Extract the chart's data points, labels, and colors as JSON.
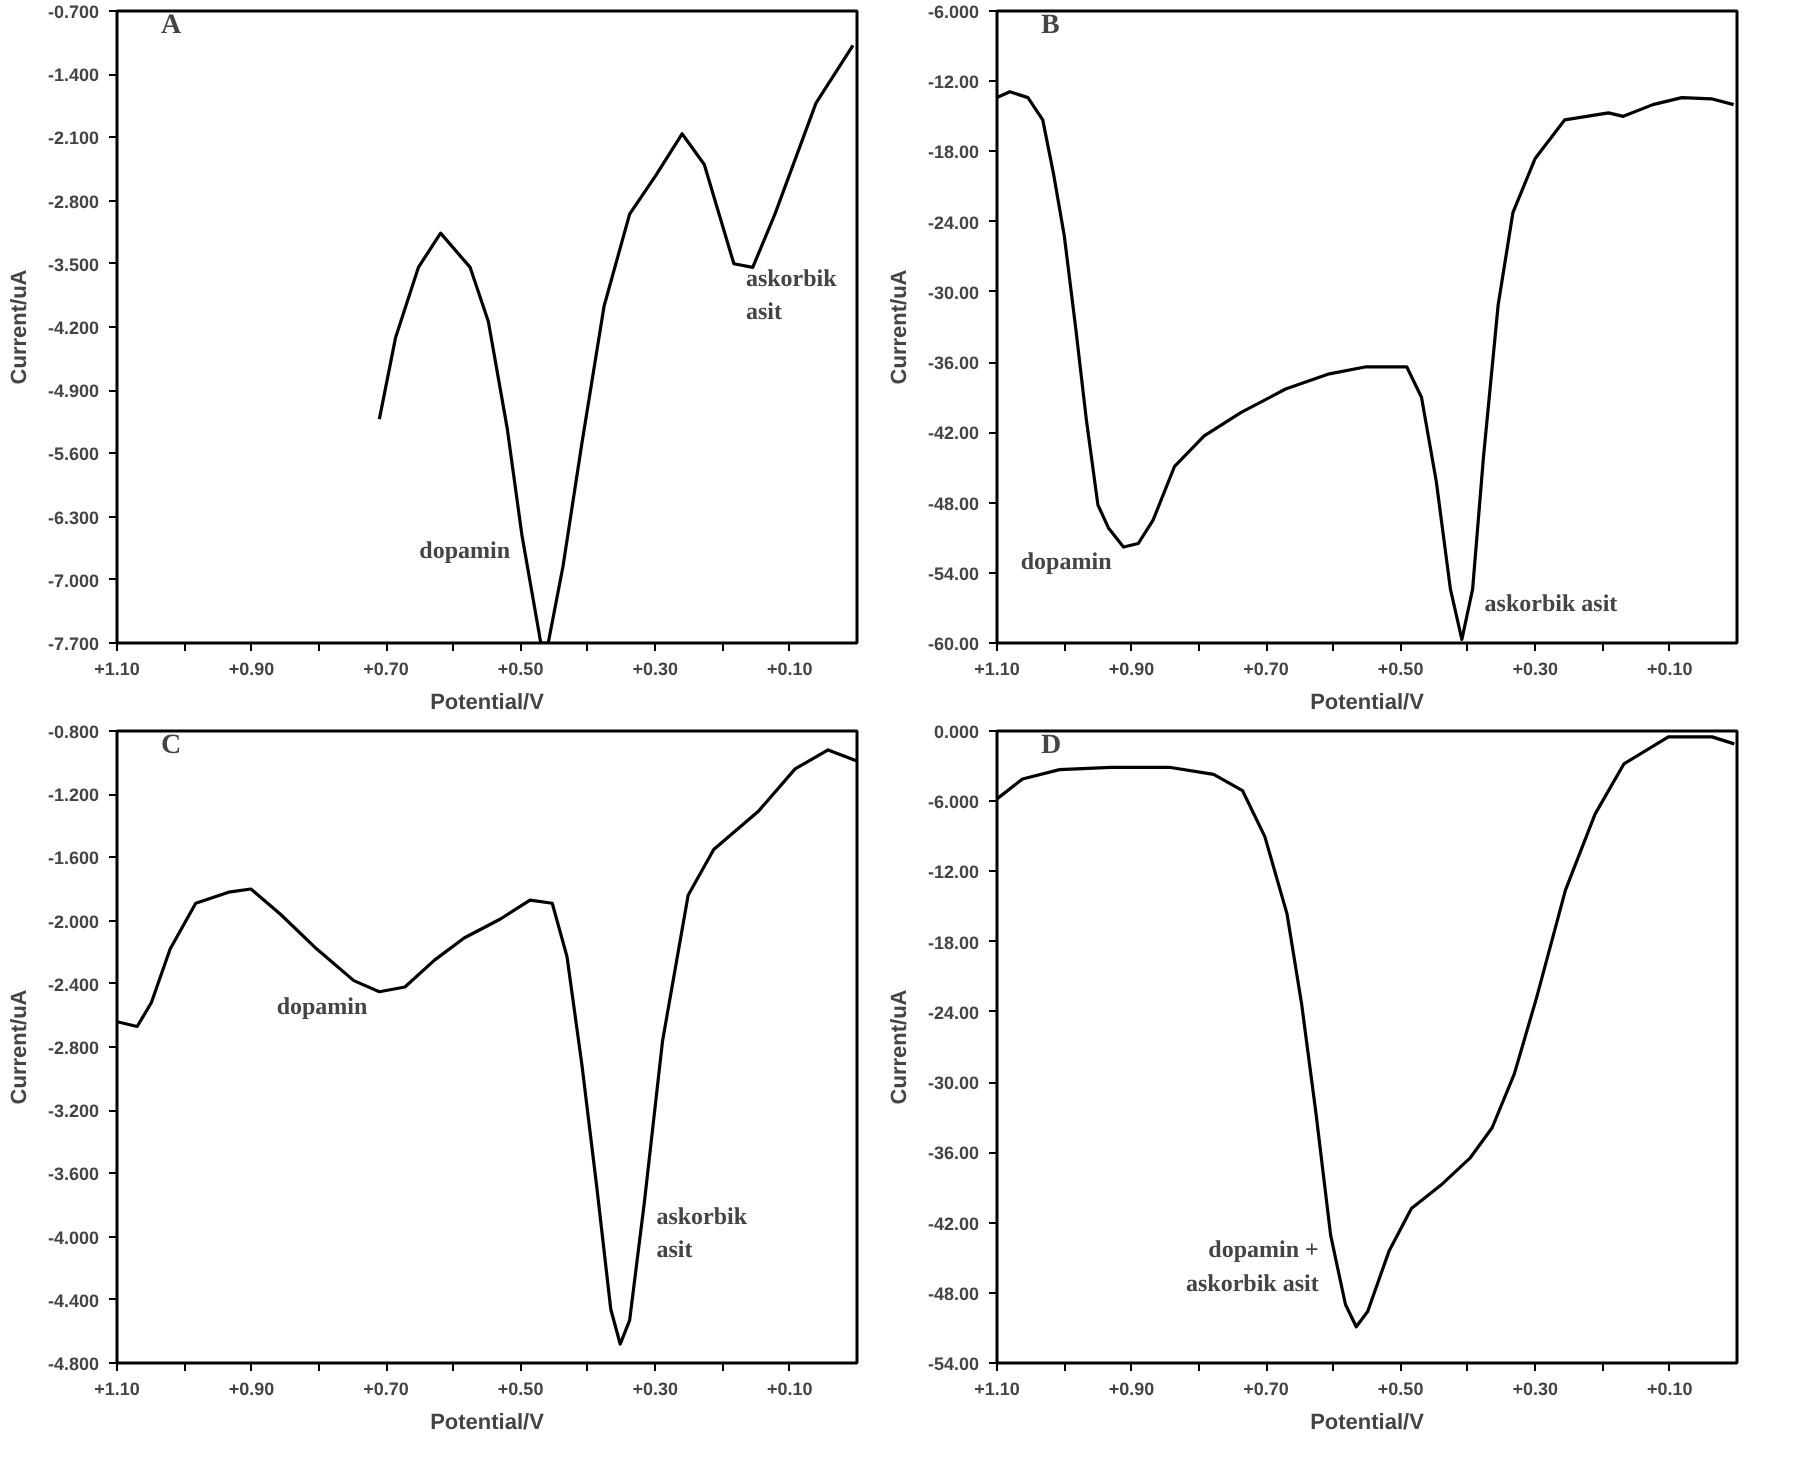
{
  "chart_data": [
    {
      "type": "line",
      "title": "A",
      "xlabel": "Potential/V",
      "ylabel": "Current/uA",
      "xlim": [
        1.1,
        0.0
      ],
      "ylim": [
        -7.7,
        -0.7
      ],
      "xticks": [
        {
          "value": 1.1,
          "label": "+1.10"
        },
        {
          "value": 1.0,
          "label": null
        },
        {
          "value": 0.9,
          "label": "+0.90"
        },
        {
          "value": 0.8,
          "label": null
        },
        {
          "value": 0.7,
          "label": "+0.70"
        },
        {
          "value": 0.6,
          "label": null
        },
        {
          "value": 0.5,
          "label": "+0.50"
        },
        {
          "value": 0.4,
          "label": null
        },
        {
          "value": 0.3,
          "label": "+0.30"
        },
        {
          "value": 0.2,
          "label": null
        },
        {
          "value": 0.1,
          "label": "+0.10"
        }
      ],
      "yticks": [
        {
          "value": -0.7,
          "label": "-0.700"
        },
        {
          "value": -1.4,
          "label": "-1.400"
        },
        {
          "value": -2.1,
          "label": "-2.100"
        },
        {
          "value": -2.8,
          "label": "-2.800"
        },
        {
          "value": -3.5,
          "label": "-3.500"
        },
        {
          "value": -4.2,
          "label": "-4.200"
        },
        {
          "value": -4.9,
          "label": "-4.900"
        },
        {
          "value": -5.6,
          "label": "-5.600"
        },
        {
          "value": -6.3,
          "label": "-6.300"
        },
        {
          "value": -7.0,
          "label": "-7.000"
        },
        {
          "value": -7.7,
          "label": "-7.700"
        }
      ],
      "x": [
        0.71,
        0.686,
        0.652,
        0.619,
        0.575,
        0.548,
        0.52,
        0.498,
        0.47,
        0.459,
        0.437,
        0.409,
        0.376,
        0.338,
        0.299,
        0.26,
        0.227,
        0.183,
        0.155,
        0.122,
        0.061,
        0.006
      ],
      "series": [
        {
          "color": "#000000",
          "values": [
            -5.22,
            -4.32,
            -3.54,
            -3.16,
            -3.54,
            -4.14,
            -5.32,
            -6.51,
            -7.7,
            -7.7,
            -6.85,
            -5.49,
            -3.97,
            -2.95,
            -2.52,
            -2.06,
            -2.4,
            -3.5,
            -3.54,
            -2.95,
            -1.72,
            -1.08
          ]
        }
      ],
      "annotations": [
        {
          "text": "dopamin",
          "x": 0.498,
          "y": -6.51
        },
        {
          "text": "askorbik\nasit",
          "x": 0.183,
          "y": -3.5
        }
      ]
    },
    {
      "type": "line",
      "title": "B",
      "xlabel": "Potential/V",
      "ylabel": "Current/uA",
      "xlim": [
        1.1,
        0.0
      ],
      "ylim": [
        -60,
        -6
      ],
      "xticks": [
        {
          "value": 1.1,
          "label": "+1.10"
        },
        {
          "value": 1.0,
          "label": null
        },
        {
          "value": 0.9,
          "label": "+0.90"
        },
        {
          "value": 0.8,
          "label": null
        },
        {
          "value": 0.7,
          "label": "+0.70"
        },
        {
          "value": 0.6,
          "label": null
        },
        {
          "value": 0.5,
          "label": "+0.50"
        },
        {
          "value": 0.4,
          "label": null
        },
        {
          "value": 0.3,
          "label": "+0.30"
        },
        {
          "value": 0.2,
          "label": null
        },
        {
          "value": 0.1,
          "label": "+0.10"
        }
      ],
      "yticks": [
        {
          "value": -6,
          "label": "-6.000"
        },
        {
          "value": -12,
          "label": "-12.00"
        },
        {
          "value": -18,
          "label": "-18.00"
        },
        {
          "value": -24,
          "label": "-24.00"
        },
        {
          "value": -30,
          "label": "-30.00"
        },
        {
          "value": -36,
          "label": "-36.00"
        },
        {
          "value": -42,
          "label": "-42.00"
        },
        {
          "value": -48,
          "label": "-48.00"
        },
        {
          "value": -54,
          "label": "-54.00"
        },
        {
          "value": -60,
          "label": "-60.00"
        }
      ],
      "x": [
        1.1,
        1.081,
        1.054,
        1.032,
        1.016,
        1.0,
        0.983,
        0.967,
        0.95,
        0.934,
        0.912,
        0.89,
        0.868,
        0.836,
        0.792,
        0.737,
        0.671,
        0.606,
        0.551,
        0.491,
        0.469,
        0.447,
        0.426,
        0.409,
        0.393,
        0.377,
        0.355,
        0.333,
        0.3,
        0.256,
        0.191,
        0.169,
        0.125,
        0.082,
        0.038,
        0.005
      ],
      "series": [
        {
          "color": "#000000",
          "values": [
            -13.4,
            -12.9,
            -13.4,
            -15.3,
            -19.9,
            -25.2,
            -33.1,
            -41.0,
            -48.2,
            -50.2,
            -51.8,
            -51.5,
            -49.5,
            -44.9,
            -42.3,
            -40.3,
            -38.3,
            -37.0,
            -36.4,
            -36.4,
            -39.0,
            -46.2,
            -55.4,
            -59.7,
            -55.4,
            -44.2,
            -31.1,
            -23.2,
            -18.6,
            -15.3,
            -14.7,
            -15.0,
            -14.0,
            -13.4,
            -13.5,
            -14.0
          ]
        }
      ],
      "annotations": [
        {
          "text": "dopamin",
          "x": 0.912,
          "y": -51.8
        },
        {
          "text": "askorbik asit",
          "x": 0.393,
          "y": -55.4
        }
      ]
    },
    {
      "type": "line",
      "title": "C",
      "xlabel": "Potential/V",
      "ylabel": "Current/uA",
      "xlim": [
        1.1,
        0.0
      ],
      "ylim": [
        -4.8,
        -0.8
      ],
      "xticks": [
        {
          "value": 1.1,
          "label": "+1.10"
        },
        {
          "value": 1.0,
          "label": null
        },
        {
          "value": 0.9,
          "label": "+0.90"
        },
        {
          "value": 0.8,
          "label": null
        },
        {
          "value": 0.7,
          "label": "+0.70"
        },
        {
          "value": 0.6,
          "label": null
        },
        {
          "value": 0.5,
          "label": "+0.50"
        },
        {
          "value": 0.4,
          "label": null
        },
        {
          "value": 0.3,
          "label": "+0.30"
        },
        {
          "value": 0.2,
          "label": null
        },
        {
          "value": 0.1,
          "label": "+0.10"
        }
      ],
      "yticks": [
        {
          "value": -0.8,
          "label": "-0.800"
        },
        {
          "value": -1.2,
          "label": "-1.200"
        },
        {
          "value": -1.6,
          "label": "-1.600"
        },
        {
          "value": -2.0,
          "label": "-2.000"
        },
        {
          "value": -2.4,
          "label": "-2.400"
        },
        {
          "value": -2.8,
          "label": "-2.800"
        },
        {
          "value": -3.2,
          "label": "-3.200"
        },
        {
          "value": -3.6,
          "label": "-3.600"
        },
        {
          "value": -4.0,
          "label": "-4.000"
        },
        {
          "value": -4.4,
          "label": "-4.400"
        },
        {
          "value": -4.8,
          "label": "-4.800"
        }
      ],
      "x": [
        1.1,
        1.07,
        1.049,
        1.021,
        0.983,
        0.934,
        0.901,
        0.857,
        0.803,
        0.748,
        0.71,
        0.672,
        0.628,
        0.584,
        0.53,
        0.486,
        0.453,
        0.431,
        0.409,
        0.387,
        0.366,
        0.352,
        0.338,
        0.316,
        0.289,
        0.251,
        0.213,
        0.147,
        0.092,
        0.043,
        0.0
      ],
      "series": [
        {
          "color": "#000000",
          "values": [
            -2.64,
            -2.67,
            -2.52,
            -2.18,
            -1.89,
            -1.82,
            -1.8,
            -1.96,
            -2.18,
            -2.38,
            -2.45,
            -2.42,
            -2.25,
            -2.11,
            -1.99,
            -1.87,
            -1.89,
            -2.23,
            -2.91,
            -3.68,
            -4.46,
            -4.68,
            -4.53,
            -3.78,
            -2.76,
            -1.84,
            -1.55,
            -1.31,
            -1.04,
            -0.92,
            -0.99
          ]
        }
      ],
      "annotations": [
        {
          "text": "dopamin",
          "x": 0.71,
          "y": -2.45
        },
        {
          "text": "askorbik\nasit",
          "x": 0.316,
          "y": -3.78
        }
      ]
    },
    {
      "type": "line",
      "title": "D",
      "xlabel": "Potential/V",
      "ylabel": "Current/uA",
      "xlim": [
        1.1,
        0.0
      ],
      "ylim": [
        -54,
        0
      ],
      "xticks": [
        {
          "value": 1.1,
          "label": "+1.10"
        },
        {
          "value": 1.0,
          "label": null
        },
        {
          "value": 0.9,
          "label": "+0.90"
        },
        {
          "value": 0.8,
          "label": null
        },
        {
          "value": 0.7,
          "label": "+0.70"
        },
        {
          "value": 0.6,
          "label": null
        },
        {
          "value": 0.5,
          "label": "+0.50"
        },
        {
          "value": 0.4,
          "label": null
        },
        {
          "value": 0.3,
          "label": "+0.30"
        },
        {
          "value": 0.2,
          "label": null
        },
        {
          "value": 0.1,
          "label": "+0.10"
        }
      ],
      "yticks": [
        {
          "value": 0,
          "label": "0.000"
        },
        {
          "value": -6,
          "label": "-6.000"
        },
        {
          "value": -12,
          "label": "-12.00"
        },
        {
          "value": -18,
          "label": "-18.00"
        },
        {
          "value": -24,
          "label": "-24.00"
        },
        {
          "value": -30,
          "label": "-30.00"
        },
        {
          "value": -36,
          "label": "-36.00"
        },
        {
          "value": -42,
          "label": "-42.00"
        },
        {
          "value": -48,
          "label": "-48.00"
        },
        {
          "value": -54,
          "label": "-54.00"
        }
      ],
      "x": [
        1.1,
        1.062,
        1.007,
        0.931,
        0.844,
        0.778,
        0.735,
        0.702,
        0.669,
        0.647,
        0.626,
        0.604,
        0.582,
        0.566,
        0.549,
        0.517,
        0.484,
        0.44,
        0.397,
        0.364,
        0.331,
        0.298,
        0.255,
        0.211,
        0.168,
        0.102,
        0.037,
        0.004
      ],
      "series": [
        {
          "color": "#000000",
          "values": [
            -5.8,
            -4.1,
            -3.3,
            -3.1,
            -3.1,
            -3.7,
            -5.1,
            -9.0,
            -15.6,
            -23.4,
            -32.6,
            -43.1,
            -49.0,
            -50.9,
            -49.6,
            -44.4,
            -40.8,
            -38.8,
            -36.5,
            -33.9,
            -29.3,
            -22.8,
            -13.6,
            -7.1,
            -2.8,
            -0.5,
            -0.5,
            -1.1
          ]
        }
      ],
      "annotations": [
        {
          "text": "dopamin +\naskorbik asit",
          "x": 0.604,
          "y": -43.1
        }
      ]
    }
  ]
}
